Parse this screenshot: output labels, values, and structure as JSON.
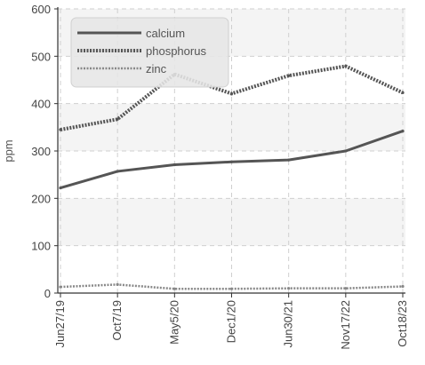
{
  "chart_data": {
    "type": "line",
    "title": "",
    "xlabel": "",
    "ylabel": "ppm",
    "categories": [
      "Jun27/19",
      "Oct7/19",
      "May5/20",
      "Dec1/20",
      "Jun30/21",
      "Nov17/22",
      "Oct18/23"
    ],
    "ylim": [
      0,
      600
    ],
    "yticks": [
      0,
      100,
      200,
      300,
      400,
      500,
      600
    ],
    "grid": true,
    "legend_position": "top-left",
    "series": [
      {
        "name": "calcium",
        "values": [
          222,
          257,
          271,
          277,
          281,
          300,
          342
        ],
        "color": "#555555",
        "style": "solid"
      },
      {
        "name": "phosphorus",
        "values": [
          345,
          367,
          462,
          421,
          459,
          479,
          423
        ],
        "color": "#555555",
        "style": "dotted"
      },
      {
        "name": "zinc",
        "values": [
          13,
          18,
          9,
          9,
          10,
          10,
          14
        ],
        "color": "#888888",
        "style": "dotted-thin"
      }
    ]
  }
}
